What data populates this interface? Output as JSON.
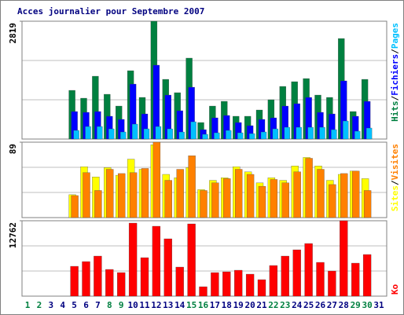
{
  "chart_data": [
    {
      "type": "bar",
      "title": "Acces journalier pour Septembre 2007",
      "ylim": [
        0,
        2819
      ],
      "yticks": [
        2819
      ],
      "grid": true,
      "legend": "top",
      "legend_separator": "/",
      "series": [
        {
          "name": "Hits",
          "color": "#008040",
          "values": [
            null,
            null,
            null,
            null,
            1165,
            977,
            1503,
            1071,
            789,
            1635,
            996,
            2819,
            1428,
            1109,
            1936,
            395,
            789,
            902,
            545,
            545,
            695,
            940,
            1259,
            1372,
            1447,
            1052,
            996,
            2405,
            658,
            1428,
            null
          ]
        },
        {
          "name": "Fichiers",
          "color": "#0000ff",
          "values": [
            null,
            null,
            null,
            null,
            658,
            639,
            658,
            545,
            470,
            1315,
            601,
            1767,
            1052,
            677,
            1240,
            225,
            507,
            564,
            395,
            320,
            470,
            507,
            789,
            846,
            996,
            639,
            601,
            1391,
            545,
            902,
            null
          ]
        },
        {
          "name": "Pages",
          "color": "#00c0ff",
          "values": [
            null,
            null,
            null,
            null,
            207,
            300,
            300,
            244,
            169,
            357,
            244,
            300,
            244,
            169,
            413,
            113,
            150,
            207,
            150,
            131,
            169,
            244,
            282,
            282,
            282,
            282,
            225,
            432,
            188,
            263,
            null
          ]
        }
      ]
    },
    {
      "type": "bar",
      "ylim": [
        0,
        89
      ],
      "yticks": [
        89
      ],
      "grid": true,
      "legend": "top",
      "legend_separator": "/",
      "series": [
        {
          "name": "Sites",
          "color": "#ffff00",
          "values": [
            null,
            null,
            null,
            null,
            27,
            60,
            48,
            59,
            50,
            69,
            57,
            86,
            51,
            47,
            59,
            33,
            44,
            47,
            60,
            54,
            41,
            47,
            44,
            61,
            71,
            61,
            44,
            51,
            55,
            46,
            null
          ]
        },
        {
          "name": "Visites",
          "color": "#ff8000",
          "values": [
            null,
            null,
            null,
            null,
            26,
            53,
            32,
            57,
            52,
            53,
            58,
            89,
            44,
            57,
            73,
            32,
            41,
            46,
            57,
            51,
            37,
            45,
            41,
            54,
            70,
            57,
            39,
            52,
            55,
            32,
            null
          ]
        }
      ]
    },
    {
      "type": "bar",
      "ylim": [
        0,
        12762
      ],
      "yticks": [
        12762
      ],
      "grid": true,
      "legend": "bottom",
      "categories": [
        "1",
        "2",
        "3",
        "4",
        "5",
        "6",
        "7",
        "8",
        "9",
        "10",
        "11",
        "12",
        "13",
        "14",
        "15",
        "16",
        "17",
        "18",
        "19",
        "20",
        "21",
        "22",
        "23",
        "24",
        "25",
        "26",
        "27",
        "28",
        "29",
        "30",
        "31"
      ],
      "category_colors": [
        "#008040",
        "#008040",
        "#000080",
        "#000080",
        "#000080",
        "#000080",
        "#000080",
        "#008040",
        "#008040",
        "#000080",
        "#000080",
        "#000080",
        "#000080",
        "#000080",
        "#008040",
        "#008040",
        "#000080",
        "#000080",
        "#000080",
        "#000080",
        "#000080",
        "#008040",
        "#008040",
        "#000080",
        "#000080",
        "#000080",
        "#000080",
        "#000080",
        "#008040",
        "#008040",
        "#000080"
      ],
      "series": [
        {
          "name": "Ko",
          "color": "#ff0000",
          "values": [
            null,
            null,
            null,
            null,
            5052,
            5850,
            6780,
            4520,
            3988,
            12363,
            6514,
            11832,
            9705,
            4919,
            12230,
            1595,
            3988,
            4121,
            4387,
            3722,
            2792,
            5185,
            6780,
            7844,
            8907,
            5717,
            4254,
            12762,
            5584,
            7046,
            null
          ]
        }
      ]
    }
  ]
}
